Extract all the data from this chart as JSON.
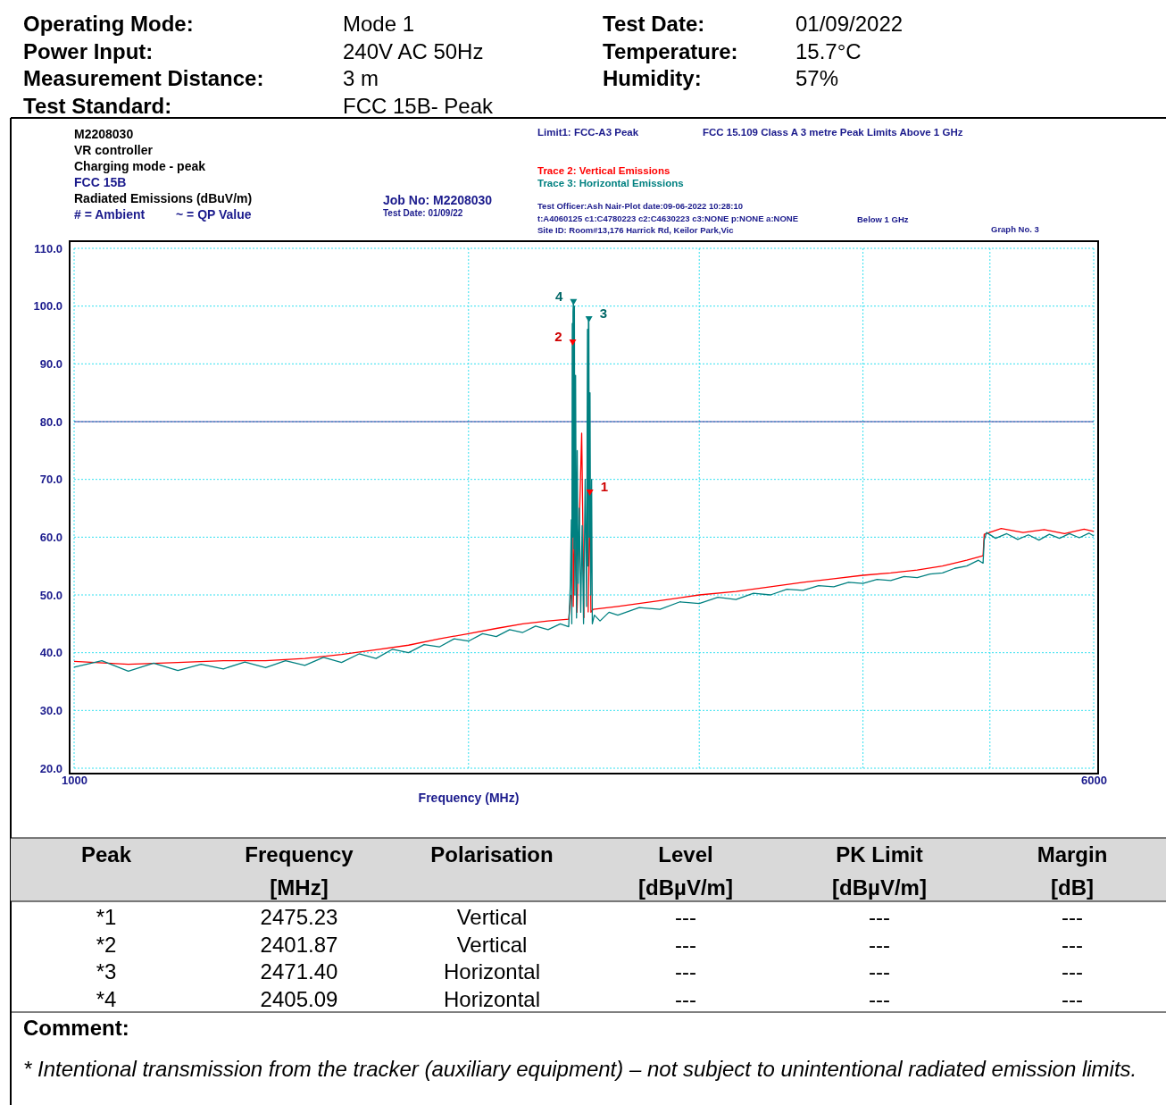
{
  "chart_data": {
    "type": "line",
    "xlabel": "Frequency (MHz)",
    "log": "x",
    "grid": true,
    "legend": "top",
    "line_style": "solid",
    "marker": "none",
    "xlim": [
      1000,
      6000
    ],
    "xticks": [
      1000,
      {
        "value": 2000,
        "label": null
      },
      {
        "value": 3000,
        "label": null
      },
      {
        "value": 4000,
        "label": null
      },
      {
        "value": 5000,
        "label": null
      },
      6000
    ],
    "ylim": [
      20,
      110
    ],
    "yticks": [
      {
        "value": 20,
        "label": "20.0"
      },
      {
        "value": 30,
        "label": "30.0"
      },
      {
        "value": 40,
        "label": "40.0"
      },
      {
        "value": 50,
        "label": "50.0"
      },
      {
        "value": 60,
        "label": "60.0"
      },
      {
        "value": 70,
        "label": "70.0"
      },
      {
        "value": 80,
        "label": "80.0"
      },
      {
        "value": 90,
        "label": "90.0"
      },
      {
        "value": 100,
        "label": "100.0"
      },
      {
        "value": 110,
        "label": "110.0"
      }
    ],
    "ref_lines": [
      {
        "axis": "y",
        "value": 80,
        "color": "#3f3f9f"
      }
    ],
    "series": [
      {
        "name": "Trace 2: Vertical Emissions",
        "color": "#ff0000",
        "x": [
          1000,
          1100,
          1200,
          1300,
          1400,
          1500,
          1600,
          1700,
          1800,
          1900,
          2000,
          2100,
          2200,
          2300,
          2385,
          2395,
          2399,
          2401.87,
          2404,
          2410,
          2420,
          2440,
          2450,
          2460,
          2468,
          2475.23,
          2480,
          2490,
          2600,
          2800,
          3000,
          3200,
          3400,
          3600,
          3800,
          4000,
          4200,
          4400,
          4600,
          4800,
          4940,
          4950,
          5100,
          5300,
          5500,
          5700,
          5900,
          6000
        ],
        "values": [
          38.5,
          38.0,
          38.3,
          38.6,
          38.6,
          39.0,
          39.7,
          40.5,
          41.3,
          42.4,
          43.3,
          44.2,
          45.0,
          45.5,
          45.8,
          50,
          null,
          93,
          48,
          60,
          47,
          78,
          46,
          null,
          47,
          67,
          47,
          47.5,
          48.0,
          49.0,
          50.0,
          50.6,
          51.4,
          52.2,
          52.8,
          53.4,
          53.8,
          54.3,
          55.0,
          56.0,
          56.8,
          60.5,
          61.5,
          60.8,
          61.3,
          60.6,
          61.4,
          61.0
        ]
      },
      {
        "name": "Trace 3: Horizontal Emissions",
        "color": "#008080",
        "x": [
          1000,
          1050,
          1100,
          1150,
          1200,
          1250,
          1300,
          1350,
          1400,
          1450,
          1500,
          1550,
          1600,
          1650,
          1700,
          1750,
          1800,
          1850,
          1900,
          1950,
          2000,
          2050,
          2100,
          2150,
          2200,
          2250,
          2300,
          2350,
          2385,
          2392,
          2396,
          2398,
          2400,
          2402,
          2403,
          2405,
          2407,
          2409,
          2411,
          2414,
          2418,
          2421,
          2425,
          2430,
          2436,
          2442,
          2448,
          2455,
          2461,
          2465,
          2467,
          2469,
          2471,
          2473,
          2476,
          2479,
          2483,
          2486,
          2495,
          2520,
          2560,
          2600,
          2700,
          2800,
          2900,
          3000,
          3100,
          3200,
          3300,
          3400,
          3500,
          3600,
          3700,
          3800,
          3900,
          4000,
          4100,
          4200,
          4300,
          4400,
          4500,
          4600,
          4700,
          4800,
          4900,
          4940,
          4950,
          4970,
          5050,
          5150,
          5250,
          5350,
          5450,
          5550,
          5650,
          5750,
          5850,
          5950,
          6000
        ],
        "values": [
          37.5,
          38.6,
          36.8,
          38.2,
          36.9,
          38.0,
          37.2,
          38.4,
          37.4,
          38.6,
          37.8,
          39.2,
          38.3,
          39.8,
          39.0,
          40.6,
          40.0,
          41.4,
          41.0,
          42.4,
          42.0,
          43.3,
          42.8,
          44.0,
          43.5,
          44.6,
          44.0,
          45.0,
          44.5,
          52,
          63,
          45,
          97,
          60,
          99,
          101,
          58,
          100,
          50,
          88,
          46,
          75,
          52,
          65,
          47,
          62,
          45,
          70,
          48,
          96,
          55,
          98,
          97,
          60,
          85,
          50,
          70,
          45,
          46.5,
          45.5,
          47,
          46.5,
          47.8,
          47.5,
          48.8,
          48.5,
          49.6,
          49.2,
          50.3,
          50.0,
          51.0,
          50.8,
          51.6,
          51.4,
          52.2,
          52.0,
          52.7,
          52.5,
          53.2,
          53.0,
          53.6,
          53.8,
          54.6,
          55.0,
          56.0,
          55.5,
          59.5,
          60.8,
          59.8,
          60.6,
          59.6,
          60.4,
          59.5,
          60.5,
          59.8,
          60.6,
          59.9,
          60.7,
          60.2
        ]
      }
    ],
    "annotations": [
      "Operating Mode:",
      "Mode 1",
      "Test Date:",
      "01/09/2022",
      "Power Input:",
      "240V AC 50Hz",
      "Temperature:",
      "15.7°C",
      "Measurement Distance:",
      "3 m",
      "Humidity:",
      "57%",
      "Test Standard:",
      "FCC 15B- Peak",
      "M2208030",
      "VR controller",
      "Charging mode - peak",
      "FCC 15B",
      "Radiated Emissions (dBuV/m)",
      "# = Ambient",
      "~ = QP Value",
      "Job No: M2208030",
      "Test Date: 01/09/22",
      "Limit1: FCC-A3 Peak",
      "FCC 15.109 Class A 3 metre Peak Limits Above 1 GHz",
      "Test Officer:Ash Nair-Plot date:09-06-2022 10:28:10",
      "t:A4060125 c1:C4780223  c2:C4630223  c3:NONE p:NONE a:NONE",
      "Site ID: Room#13,176 Harrick Rd, Keilor Park,Vic",
      "Below 1 GHz",
      "Graph No.  3",
      "Peak",
      "Frequency\n[MHz]",
      "Polarisation",
      "Level\n[dBµV/m]",
      "PK Limit\n[dBµV/m]",
      "Margin\n[dB]",
      "*1",
      "2475.23",
      "Vertical",
      "---",
      "---",
      "---",
      "*2",
      "2401.87",
      "Vertical",
      "---",
      "---",
      "---",
      "*3",
      "2471.40",
      "Horizontal",
      "---",
      "---",
      "---",
      "*4",
      "2405.09",
      "Horizontal",
      "---",
      "---",
      "---",
      "Comment:",
      "* Intentional transmission from the tracker (auxiliary equipment)  – not subject to unintentional radiated emission limits.",
      {
        "text": "1",
        "x": 2475.23,
        "y": 67
      },
      {
        "text": "2",
        "x": 2401.87,
        "y": 93
      },
      {
        "text": "3",
        "x": 2471.4,
        "y": 97
      },
      {
        "text": "4",
        "x": 2405.09,
        "y": 100
      }
    ]
  }
}
